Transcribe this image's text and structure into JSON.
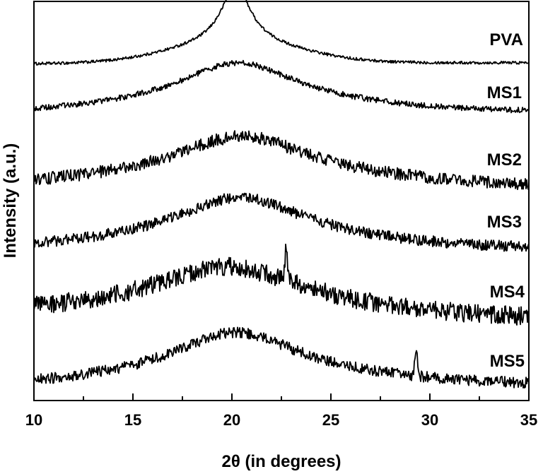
{
  "chart_data": {
    "type": "line",
    "xlabel": "2θ (in degrees)",
    "ylabel": "Intensity (a.u.)",
    "xlim": [
      10,
      35
    ],
    "x_major_ticks": [
      10,
      15,
      20,
      25,
      30,
      35
    ],
    "x_minor_ticks": [
      12.5,
      17.5,
      22.5,
      27.5,
      32.5
    ],
    "x_tick_labels": [
      "10",
      "15",
      "20",
      "25",
      "30",
      "35"
    ],
    "y_ticks_shown": false,
    "grid": false,
    "legend": "inline labels at right of each trace",
    "stacked_offset": true,
    "series": [
      {
        "name": "PVA",
        "peak_center": 20.2,
        "peak_width": 0.9,
        "peak_height": 0.82,
        "broad_width": 3.2,
        "broad_height": 0.28,
        "baseline_start": 0.04,
        "baseline_end": 0.06,
        "noise": 0.02,
        "extra_peaks": []
      },
      {
        "name": "MS1",
        "peak_center": 20.3,
        "peak_width": 3.5,
        "peak_height": 0.58,
        "broad_width": 6.0,
        "broad_height": 0.15,
        "baseline_start": 0.02,
        "baseline_end": 0.05,
        "noise": 0.04,
        "extra_peaks": []
      },
      {
        "name": "MS2",
        "peak_center": 20.5,
        "peak_width": 4.2,
        "peak_height": 0.55,
        "broad_width": 7.0,
        "broad_height": 0.12,
        "baseline_start": 0.03,
        "baseline_end": 0.03,
        "noise": 0.08,
        "extra_peaks": []
      },
      {
        "name": "MS3",
        "peak_center": 20.4,
        "peak_width": 4.0,
        "peak_height": 0.58,
        "broad_width": 7.0,
        "broad_height": 0.12,
        "baseline_start": 0.03,
        "baseline_end": 0.04,
        "noise": 0.07,
        "extra_peaks": []
      },
      {
        "name": "MS4",
        "peak_center": 19.8,
        "peak_width": 4.5,
        "peak_height": 0.55,
        "broad_width": 7.5,
        "broad_height": 0.12,
        "baseline_start": 0.1,
        "baseline_end": 0.05,
        "noise": 0.12,
        "extra_peaks": [
          {
            "x": 22.75,
            "h": 0.45,
            "w": 0.06
          }
        ]
      },
      {
        "name": "MS5",
        "peak_center": 20.2,
        "peak_width": 3.8,
        "peak_height": 0.58,
        "broad_width": 7.0,
        "broad_height": 0.14,
        "baseline_start": 0.02,
        "baseline_end": 0.05,
        "noise": 0.07,
        "extra_peaks": [
          {
            "x": 29.3,
            "h": 0.32,
            "w": 0.07
          }
        ]
      }
    ]
  }
}
